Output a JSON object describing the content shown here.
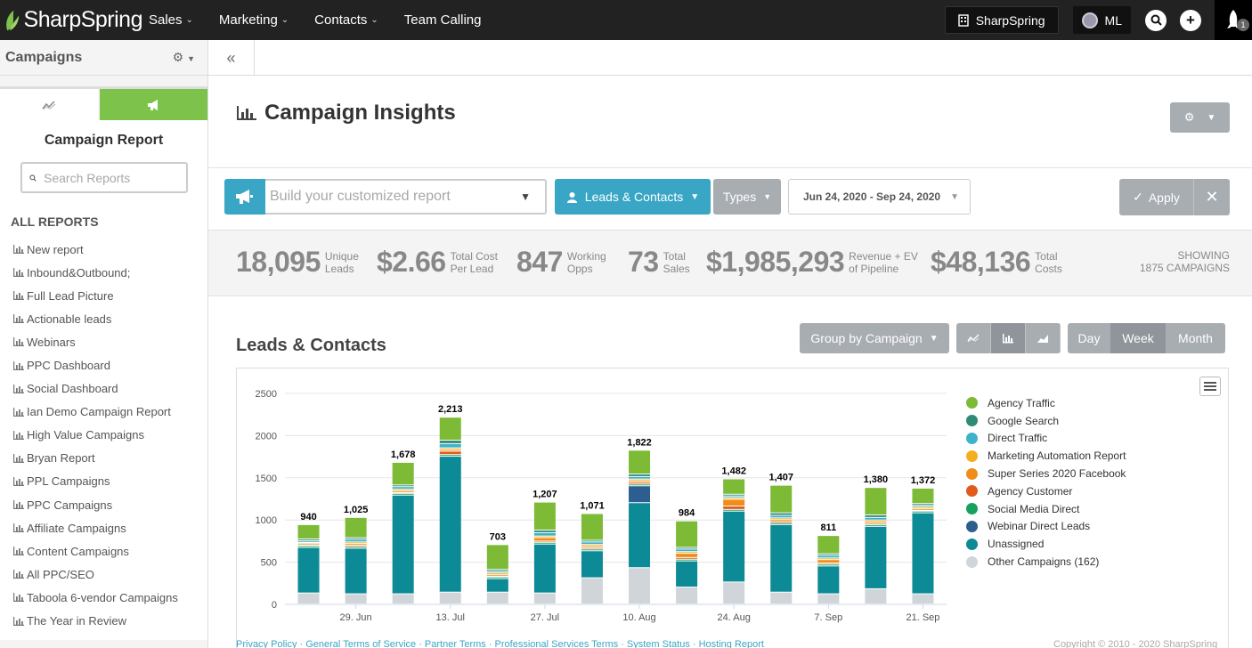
{
  "topnav": {
    "brand": "SharpSpring",
    "items": [
      "Sales",
      "Marketing",
      "Contacts",
      "Team Calling"
    ],
    "account_button": "SharpSpring",
    "user_initials": "ML",
    "notification_count": "1"
  },
  "sidebar": {
    "title": "Campaigns",
    "report_title": "Campaign Report",
    "search_placeholder": "Search Reports",
    "section_label": "ALL REPORTS",
    "reports": [
      "New report",
      "Inbound&Outbound;",
      "Full Lead Picture",
      "Actionable leads",
      "Webinars",
      "PPC Dashboard",
      "Social Dashboard",
      "Ian Demo Campaign Report",
      "High Value Campaigns",
      "Bryan Report",
      "PPL Campaigns",
      "PPC Campaigns",
      "Affiliate Campaigns",
      "Content Campaigns",
      "All PPC/SEO",
      "Taboola 6-vendor Campaigns",
      "The Year in Review"
    ]
  },
  "page": {
    "title": "Campaign Insights"
  },
  "filters": {
    "report_placeholder": "Build your customized report",
    "leads_contacts": "Leads & Contacts",
    "types": "Types",
    "date_range": "Jun 24, 2020 - Sep 24, 2020",
    "apply": "Apply"
  },
  "stats": [
    {
      "value": "18,095",
      "label_1": "Unique",
      "label_2": "Leads"
    },
    {
      "value": "$2.66",
      "label_1": "Total Cost",
      "label_2": "Per Lead"
    },
    {
      "value": "847",
      "label_1": "Working",
      "label_2": "Opps"
    },
    {
      "value": "73",
      "label_1": "Total",
      "label_2": "Sales"
    },
    {
      "value": "$1,985,293",
      "label_1": "Revenue + EV",
      "label_2": "of Pipeline"
    },
    {
      "value": "$48,136",
      "label_1": "Total",
      "label_2": "Costs"
    }
  ],
  "showing": {
    "line_1": "SHOWING",
    "line_2": "1875 CAMPAIGNS"
  },
  "chart_section": {
    "title": "Leads & Contacts",
    "group_by": "Group by Campaign",
    "periods": [
      "Day",
      "Week",
      "Month"
    ],
    "active_period": "Week"
  },
  "footer": {
    "links": "Privacy Policy · General Terms of Service · Partner Terms · Professional Services Terms · System Status · Hosting Report",
    "copyright": "Copyright © 2010 - 2020 SharpSpring"
  },
  "chart_data": {
    "type": "bar",
    "stacked": true,
    "title": "Leads & Contacts",
    "ylim": [
      0,
      2500
    ],
    "yticks": [
      0,
      500,
      1000,
      1500,
      2000,
      2500
    ],
    "x_tick_labels": [
      "29. Jun",
      "13. Jul",
      "27. Jul",
      "10. Aug",
      "24. Aug",
      "7. Sep",
      "21. Sep"
    ],
    "x_tick_indices": [
      1,
      3,
      5,
      7,
      9,
      11,
      13
    ],
    "totals": [
      940,
      1025,
      1678,
      2213,
      703,
      1207,
      1071,
      1822,
      984,
      1482,
      1407,
      811,
      1380,
      1372
    ],
    "series": [
      {
        "name": "Other Campaigns (162)",
        "color": "#d0d5d9",
        "values": [
          130,
          120,
          120,
          140,
          140,
          130,
          310,
          430,
          200,
          260,
          140,
          120,
          180,
          120
        ]
      },
      {
        "name": "Unassigned",
        "color": "#0c8a96",
        "values": [
          540,
          540,
          1170,
          1610,
          160,
          580,
          320,
          770,
          310,
          840,
          800,
          330,
          740,
          960
        ]
      },
      {
        "name": "Webinar Direct Leads",
        "color": "#2c5f8f",
        "values": [
          0,
          0,
          0,
          0,
          0,
          0,
          0,
          200,
          0,
          0,
          0,
          0,
          0,
          0
        ]
      },
      {
        "name": "Social Media Direct",
        "color": "#16a15e",
        "values": [
          20,
          20,
          20,
          20,
          20,
          20,
          20,
          20,
          20,
          20,
          20,
          20,
          20,
          20
        ]
      },
      {
        "name": "Agency Customer",
        "color": "#e25a1c",
        "values": [
          10,
          15,
          10,
          40,
          10,
          15,
          15,
          20,
          20,
          40,
          20,
          15,
          15,
          10
        ]
      },
      {
        "name": "Super Series 2020 Facebook",
        "color": "#f08d1a",
        "values": [
          20,
          20,
          20,
          20,
          20,
          40,
          20,
          20,
          50,
          80,
          20,
          40,
          20,
          20
        ]
      },
      {
        "name": "Marketing Automation Report",
        "color": "#f2b01e",
        "values": [
          10,
          20,
          20,
          20,
          20,
          20,
          20,
          20,
          20,
          20,
          20,
          20,
          20,
          20
        ]
      },
      {
        "name": "Direct Traffic",
        "color": "#3cb3c9",
        "values": [
          20,
          30,
          30,
          50,
          20,
          40,
          30,
          30,
          30,
          20,
          30,
          30,
          30,
          20
        ]
      },
      {
        "name": "Google Search",
        "color": "#2f8a76",
        "values": [
          20,
          20,
          20,
          40,
          20,
          30,
          20,
          30,
          20,
          20,
          30,
          20,
          30,
          20
        ]
      },
      {
        "name": "Agency Traffic",
        "color": "#7dba36",
        "values": [
          170,
          240,
          268,
          273,
          293,
          332,
          316,
          282,
          314,
          182,
          327,
          216,
          325,
          182
        ]
      }
    ],
    "legend": [
      "Agency Traffic",
      "Google Search",
      "Direct Traffic",
      "Marketing Automation Report",
      "Super Series 2020 Facebook",
      "Agency Customer",
      "Social Media Direct",
      "Webinar Direct Leads",
      "Unassigned",
      "Other Campaigns (162)"
    ]
  }
}
